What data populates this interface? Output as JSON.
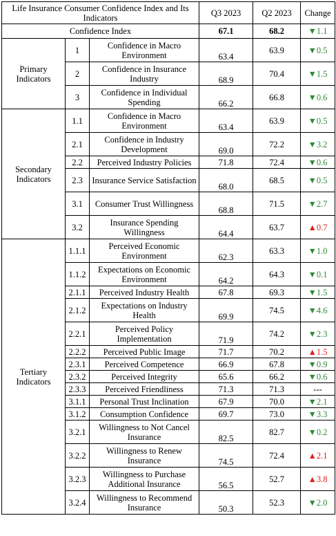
{
  "header": {
    "title": "Life Insurance Consumer Confidence Index and Its Indicators",
    "col_q3": "Q3 2023",
    "col_q2": "Q2 2023",
    "col_change": "Change"
  },
  "overall": {
    "label": "Confidence Index",
    "q3": "67.1",
    "q2": "68.2",
    "change": "1.1",
    "direction": "down"
  },
  "groups": [
    {
      "label": "Primary Indicators",
      "rows": [
        {
          "code": "1",
          "name": "Confidence in Macro Environment",
          "q3": "63.4",
          "q2": "63.9",
          "change": "0.5",
          "direction": "down"
        },
        {
          "code": "2",
          "name": "Confidence in Insurance Industry",
          "q3": "68.9",
          "q2": "70.4",
          "change": "1.5",
          "direction": "down"
        },
        {
          "code": "3",
          "name": "Confidence in Individual Spending",
          "q3": "66.2",
          "q2": "66.8",
          "change": "0.6",
          "direction": "down"
        }
      ]
    },
    {
      "label": "Secondary Indicators",
      "rows": [
        {
          "code": "1.1",
          "name": "Confidence in Macro Environment",
          "q3": "63.4",
          "q2": "63.9",
          "change": "0.5",
          "direction": "down"
        },
        {
          "code": "2.1",
          "name": "Confidence in Industry Development",
          "q3": "69.0",
          "q2": "72.2",
          "change": "3.2",
          "direction": "down"
        },
        {
          "code": "2.2",
          "name": "Perceived Industry Policies",
          "q3": "71.8",
          "q2": "72.4",
          "change": "0.6",
          "direction": "down"
        },
        {
          "code": "2.3",
          "name": "Insurance Service Satisfaction",
          "q3": "68.0",
          "q2": "68.5",
          "change": "0.5",
          "direction": "down"
        },
        {
          "code": "3.1",
          "name": "Consumer Trust Willingness",
          "q3": "68.8",
          "q2": "71.5",
          "change": "2.7",
          "direction": "down"
        },
        {
          "code": "3.2",
          "name": "Insurance Spending Willingness",
          "q3": "64.4",
          "q2": "63.7",
          "change": "0.7",
          "direction": "up"
        }
      ]
    },
    {
      "label": "Tertiary Indicators",
      "rows": [
        {
          "code": "1.1.1",
          "name": "Perceived Economic Environment",
          "q3": "62.3",
          "q2": "63.3",
          "change": "1.0",
          "direction": "down"
        },
        {
          "code": "1.1.2",
          "name": "Expectations on Economic Environment",
          "q3": "64.2",
          "q2": "64.3",
          "change": "0.1",
          "direction": "down"
        },
        {
          "code": "2.1.1",
          "name": "Perceived Industry Health",
          "q3": "67.8",
          "q2": "69.3",
          "change": "1.5",
          "direction": "down"
        },
        {
          "code": "2.1.2",
          "name": "Expectations on Industry Health",
          "q3": "69.9",
          "q2": "74.5",
          "change": "4.6",
          "direction": "down"
        },
        {
          "code": "2.2.1",
          "name": "Perceived Policy Implementation",
          "q3": "71.9",
          "q2": "74.2",
          "change": "2.3",
          "direction": "down"
        },
        {
          "code": "2.2.2",
          "name": "Perceived Public Image",
          "q3": "71.7",
          "q2": "70.2",
          "change": "1.5",
          "direction": "up"
        },
        {
          "code": "2.3.1",
          "name": "Perceived Competence",
          "q3": "66.9",
          "q2": "67.8",
          "change": "0.9",
          "direction": "down"
        },
        {
          "code": "2.3.2",
          "name": "Perceived Integrity",
          "q3": "65.6",
          "q2": "66.2",
          "change": "0.6",
          "direction": "down"
        },
        {
          "code": "2.3.3",
          "name": "Perceived Friendliness",
          "q3": "71.3",
          "q2": "71.3",
          "change": "---",
          "direction": "none"
        },
        {
          "code": "3.1.1",
          "name": "Personal Trust Inclination",
          "q3": "67.9",
          "q2": "70.0",
          "change": "2.1",
          "direction": "down"
        },
        {
          "code": "3.1.2",
          "name": "Consumption Confidence",
          "q3": "69.7",
          "q2": "73.0",
          "change": "3.3",
          "direction": "down"
        },
        {
          "code": "3.2.1",
          "name": "Willingness to Not Cancel Insurance",
          "q3": "82.5",
          "q2": "82.7",
          "change": "0.2",
          "direction": "down"
        },
        {
          "code": "3.2.2",
          "name": "Willingness to Renew Insurance",
          "q3": "74.5",
          "q2": "72.4",
          "change": "2.1",
          "direction": "up"
        },
        {
          "code": "3.2.3",
          "name": "Willingness to Purchase Additional Insurance",
          "q3": "56.5",
          "q2": "52.7",
          "change": "3.8",
          "direction": "up"
        },
        {
          "code": "3.2.4",
          "name": "Willingness to Recommend Insurance",
          "q3": "50.3",
          "q2": "52.3",
          "change": "2.0",
          "direction": "down"
        }
      ]
    }
  ],
  "colors": {
    "down": "#2e8b36",
    "up": "#e0201a"
  },
  "icons": {
    "down": "triangle-down-icon",
    "up": "triangle-up-icon"
  }
}
